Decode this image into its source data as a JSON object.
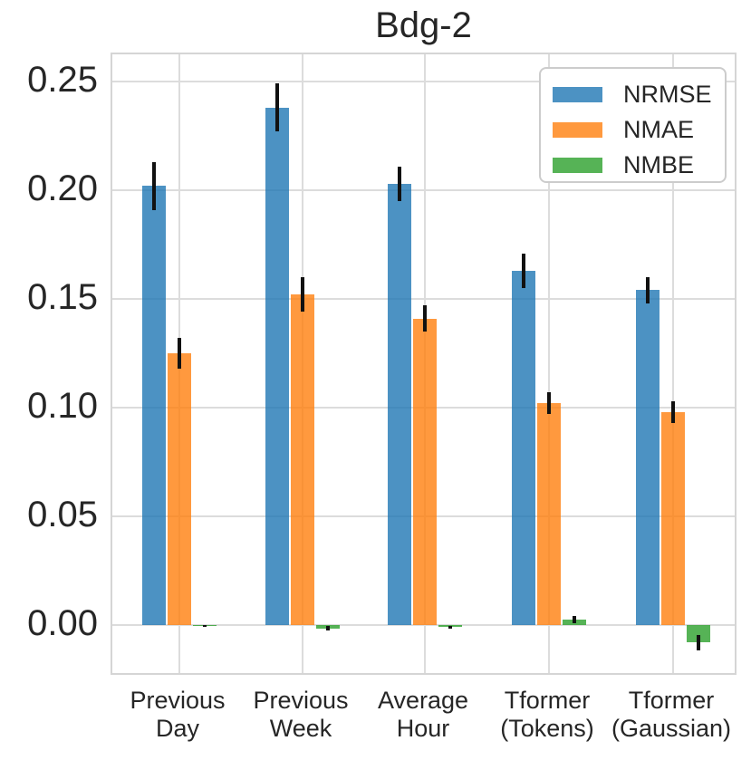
{
  "title": "Bdg-2",
  "colors": {
    "nrmse": "rgba(31,119,180,0.8)",
    "nmae": "rgba(255,127,14,0.8)",
    "nmbe": "rgba(44,160,44,0.8)",
    "grid": "#dcdcdc",
    "spine": "#d5d5d5",
    "error_bar": "#111111",
    "text": "#262626"
  },
  "chart_data": {
    "type": "bar",
    "title": "Bdg-2",
    "categories": [
      {
        "label": "Previous Day",
        "lines": [
          "Previous",
          "Day"
        ]
      },
      {
        "label": "Previous Week",
        "lines": [
          "Previous",
          "Week"
        ]
      },
      {
        "label": "Average Hour",
        "lines": [
          "Average",
          "Hour"
        ]
      },
      {
        "label": "Tformer (Tokens)",
        "lines": [
          "Tformer",
          "(Tokens)"
        ]
      },
      {
        "label": "Tformer (Gaussian)",
        "lines": [
          "Tformer",
          "(Gaussian)"
        ]
      }
    ],
    "series": [
      {
        "name": "NRMSE",
        "color": "rgba(31,119,180,0.8)",
        "values": [
          0.202,
          0.238,
          0.203,
          0.163,
          0.154
        ],
        "errors": [
          0.011,
          0.011,
          0.008,
          0.008,
          0.006
        ]
      },
      {
        "name": "NMAE",
        "color": "rgba(255,127,14,0.8)",
        "values": [
          0.125,
          0.152,
          0.141,
          0.102,
          0.098
        ],
        "errors": [
          0.007,
          0.008,
          0.006,
          0.005,
          0.005
        ]
      },
      {
        "name": "NMBE",
        "color": "rgba(44,160,44,0.8)",
        "values": [
          -0.0005,
          -0.0015,
          -0.001,
          0.0025,
          -0.008
        ],
        "errors": [
          0.0005,
          0.001,
          0.0005,
          0.0017,
          0.0035
        ]
      }
    ],
    "yticks": [
      0.0,
      0.05,
      0.1,
      0.15,
      0.2,
      0.25
    ],
    "ytick_labels": [
      "0.00",
      "0.05",
      "0.10",
      "0.15",
      "0.20",
      "0.25"
    ],
    "ylim": [
      -0.0238,
      0.2625
    ],
    "xlabel": "",
    "ylabel": "",
    "grid": true,
    "legend_position": "upper right",
    "error_bars": true
  }
}
